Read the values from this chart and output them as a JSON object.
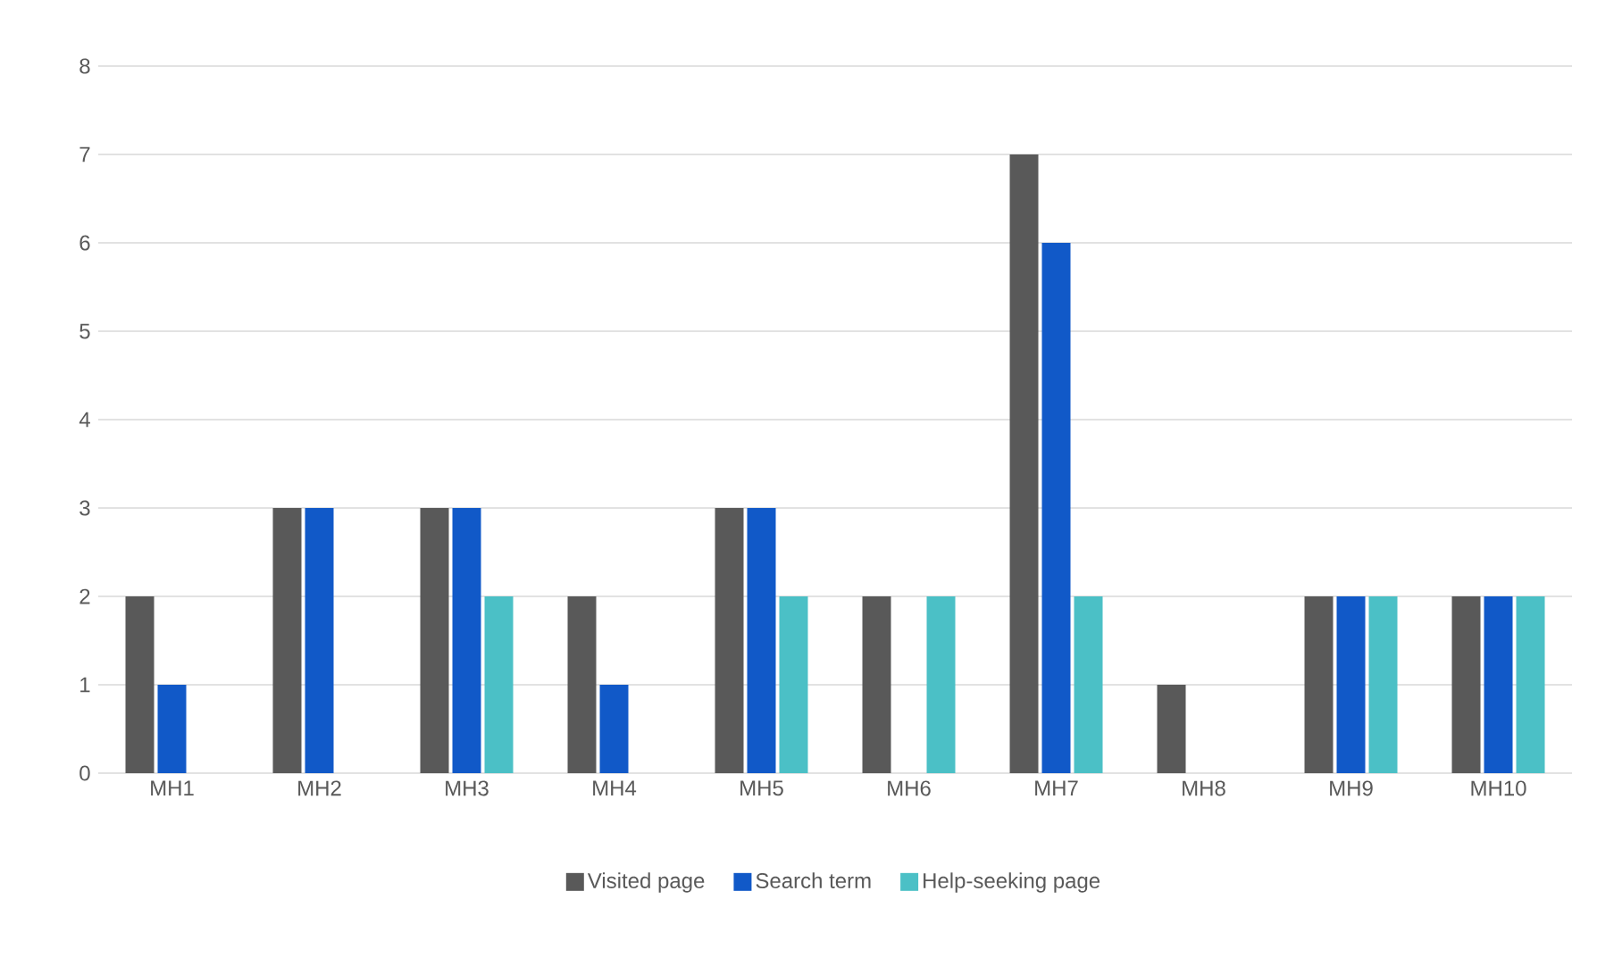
{
  "chart_data": {
    "type": "bar",
    "categories": [
      "MH1",
      "MH2",
      "MH3",
      "MH4",
      "MH5",
      "MH6",
      "MH7",
      "MH8",
      "MH9",
      "MH10"
    ],
    "series": [
      {
        "name": "Visited page",
        "color": "#595959",
        "values": [
          2,
          3,
          3,
          2,
          3,
          2,
          7,
          1,
          2,
          2
        ]
      },
      {
        "name": "Search term",
        "color": "#1159c8",
        "values": [
          1,
          3,
          3,
          1,
          3,
          0,
          6,
          0,
          2,
          2
        ]
      },
      {
        "name": "Help-seeking page",
        "color": "#4bc0c6",
        "values": [
          0,
          0,
          2,
          0,
          2,
          2,
          2,
          0,
          2,
          2
        ]
      }
    ],
    "ylim": [
      0,
      8
    ],
    "yticks": [
      0,
      1,
      2,
      3,
      4,
      5,
      6,
      7,
      8
    ],
    "grid": "y",
    "legend": "bottom"
  }
}
